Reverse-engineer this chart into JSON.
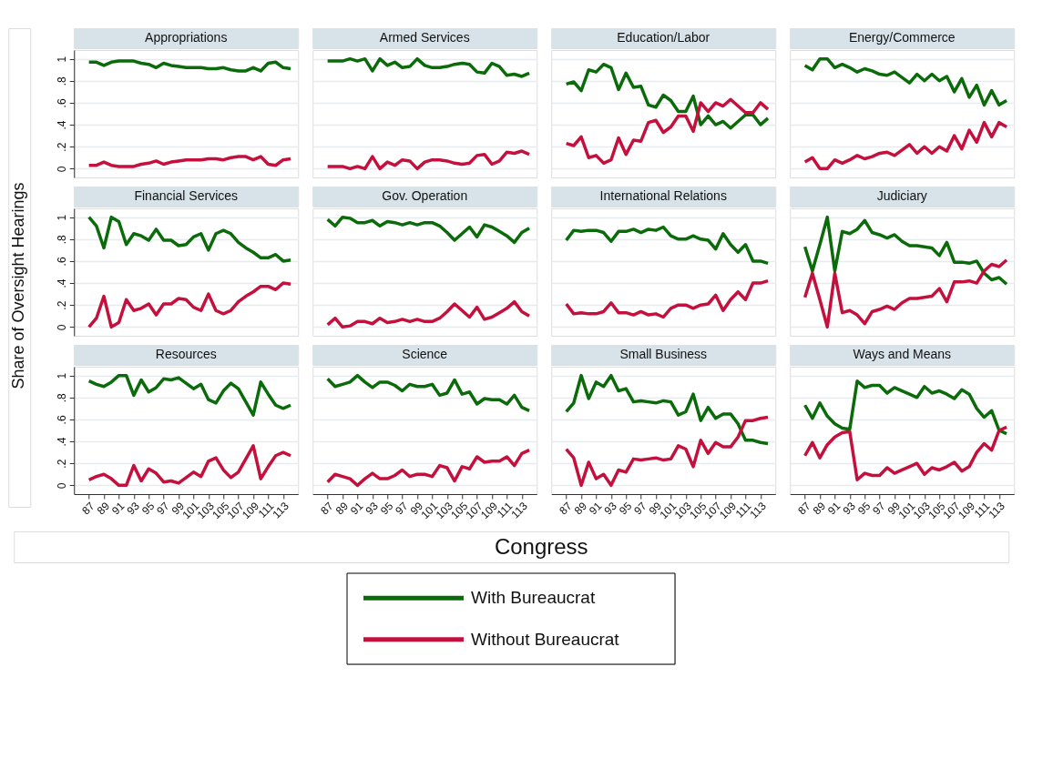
{
  "chart_data": [
    {
      "type": "line",
      "title": "Appropriations",
      "ylabel": "Share of Oversight Hearings",
      "legend": "bottom",
      "tick_labels": "y",
      "grid": "y",
      "xlim": [
        85,
        115
      ],
      "ylim": [
        -0.08,
        1.08
      ],
      "xticks": [
        87,
        89,
        91,
        93,
        95,
        97,
        99,
        101,
        103,
        105,
        107,
        109,
        111,
        113
      ],
      "yticks": [
        0,
        {
          "value": 0.2,
          "label": ".2"
        },
        {
          "value": 0.4,
          "label": ".4"
        },
        {
          "value": 0.6,
          "label": ".6"
        },
        {
          "value": 0.8,
          "label": ".8"
        },
        1
      ],
      "x": [
        87,
        88,
        89,
        90,
        91,
        92,
        93,
        94,
        95,
        96,
        97,
        98,
        99,
        100,
        101,
        102,
        103,
        104,
        105,
        106,
        107,
        108,
        109,
        110,
        111,
        112,
        113,
        114
      ],
      "series": [
        {
          "name": "With Bureaucrat",
          "color": "#0b6b0b",
          "values": [
            0.97,
            0.97,
            0.94,
            0.97,
            0.98,
            0.98,
            0.98,
            0.96,
            0.95,
            0.92,
            0.96,
            0.94,
            0.93,
            0.92,
            0.92,
            0.92,
            0.91,
            0.91,
            0.92,
            0.9,
            0.89,
            0.89,
            0.92,
            0.89,
            0.96,
            0.97,
            0.92,
            0.91
          ]
        },
        {
          "name": "Without Bureaucrat",
          "color": "#c4103d",
          "values": [
            0.03,
            0.03,
            0.06,
            0.03,
            0.02,
            0.02,
            0.02,
            0.04,
            0.05,
            0.07,
            0.04,
            0.06,
            0.07,
            0.08,
            0.08,
            0.08,
            0.09,
            0.09,
            0.08,
            0.1,
            0.11,
            0.11,
            0.08,
            0.11,
            0.04,
            0.03,
            0.08,
            0.09
          ]
        }
      ]
    },
    {
      "type": "line",
      "title": "Armed Services",
      "tick_labels": false,
      "grid": "y",
      "xlim": [
        85,
        115
      ],
      "ylim": [
        -0.08,
        1.08
      ],
      "xticks": [
        87,
        89,
        91,
        93,
        95,
        97,
        99,
        101,
        103,
        105,
        107,
        109,
        111,
        113
      ],
      "yticks": [
        0,
        0.2,
        0.4,
        0.6,
        0.8,
        1
      ],
      "x": [
        87,
        88,
        89,
        90,
        91,
        92,
        93,
        94,
        95,
        96,
        97,
        98,
        99,
        100,
        101,
        102,
        103,
        104,
        105,
        106,
        107,
        108,
        109,
        110,
        111,
        112,
        113,
        114
      ],
      "series": [
        {
          "color": "#0b6b0b",
          "values": [
            0.98,
            0.98,
            0.98,
            1.0,
            0.98,
            1.0,
            0.89,
            1.0,
            0.94,
            0.97,
            0.92,
            0.93,
            1.0,
            0.94,
            0.92,
            0.92,
            0.93,
            0.95,
            0.96,
            0.95,
            0.88,
            0.87,
            0.96,
            0.93,
            0.85,
            0.86,
            0.84,
            0.87
          ]
        },
        {
          "color": "#c4103d",
          "values": [
            0.02,
            0.02,
            0.02,
            0,
            0.02,
            0,
            0.11,
            0,
            0.06,
            0.03,
            0.08,
            0.07,
            0,
            0.06,
            0.08,
            0.08,
            0.07,
            0.05,
            0.04,
            0.05,
            0.12,
            0.13,
            0.04,
            0.07,
            0.15,
            0.14,
            0.16,
            0.13
          ]
        }
      ]
    },
    {
      "type": "line",
      "title": "Education/Labor",
      "tick_labels": false,
      "grid": "y",
      "xlim": [
        85,
        115
      ],
      "ylim": [
        -0.08,
        1.08
      ],
      "xticks": [
        87,
        89,
        91,
        93,
        95,
        97,
        99,
        101,
        103,
        105,
        107,
        109,
        111,
        113
      ],
      "yticks": [
        0,
        0.2,
        0.4,
        0.6,
        0.8,
        1
      ],
      "x": [
        87,
        88,
        89,
        90,
        91,
        92,
        93,
        94,
        95,
        96,
        97,
        98,
        99,
        100,
        101,
        102,
        103,
        104,
        105,
        106,
        107,
        108,
        109,
        110,
        111,
        112,
        113,
        114
      ],
      "series": [
        {
          "color": "#0b6b0b",
          "values": [
            0.77,
            0.79,
            0.71,
            0.9,
            0.88,
            0.95,
            0.92,
            0.72,
            0.87,
            0.74,
            0.75,
            0.58,
            0.56,
            0.67,
            0.62,
            0.52,
            0.52,
            0.66,
            0.4,
            0.48,
            0.4,
            0.43,
            0.37,
            0.43,
            0.49,
            0.49,
            0.4,
            0.46
          ]
        },
        {
          "color": "#c4103d",
          "values": [
            0.23,
            0.21,
            0.29,
            0.1,
            0.12,
            0.05,
            0.08,
            0.28,
            0.13,
            0.26,
            0.25,
            0.42,
            0.44,
            0.33,
            0.38,
            0.48,
            0.48,
            0.34,
            0.6,
            0.52,
            0.6,
            0.57,
            0.63,
            0.57,
            0.51,
            0.51,
            0.6,
            0.54
          ]
        }
      ]
    },
    {
      "type": "line",
      "title": "Energy/Commerce",
      "tick_labels": false,
      "grid": "y",
      "xlim": [
        85,
        115
      ],
      "ylim": [
        -0.08,
        1.08
      ],
      "xticks": [
        87,
        89,
        91,
        93,
        95,
        97,
        99,
        101,
        103,
        105,
        107,
        109,
        111,
        113
      ],
      "yticks": [
        0,
        0.2,
        0.4,
        0.6,
        0.8,
        1
      ],
      "x": [
        87,
        88,
        89,
        90,
        91,
        92,
        93,
        94,
        95,
        96,
        97,
        98,
        99,
        100,
        101,
        102,
        103,
        104,
        105,
        106,
        107,
        108,
        109,
        110,
        111,
        112,
        113,
        114
      ],
      "series": [
        {
          "color": "#0b6b0b",
          "values": [
            0.94,
            0.9,
            1.0,
            1.0,
            0.92,
            0.95,
            0.92,
            0.88,
            0.91,
            0.89,
            0.86,
            0.85,
            0.88,
            0.83,
            0.78,
            0.86,
            0.8,
            0.86,
            0.8,
            0.84,
            0.7,
            0.82,
            0.65,
            0.76,
            0.58,
            0.71,
            0.58,
            0.62
          ]
        },
        {
          "color": "#c4103d",
          "values": [
            0.06,
            0.1,
            0,
            0,
            0.08,
            0.05,
            0.08,
            0.12,
            0.09,
            0.11,
            0.14,
            0.15,
            0.12,
            0.17,
            0.22,
            0.14,
            0.2,
            0.14,
            0.2,
            0.16,
            0.3,
            0.18,
            0.35,
            0.24,
            0.42,
            0.29,
            0.42,
            0.38
          ]
        }
      ]
    },
    {
      "type": "line",
      "title": "Financial Services",
      "tick_labels": "y",
      "grid": "y",
      "xlim": [
        85,
        115
      ],
      "ylim": [
        -0.08,
        1.08
      ],
      "xticks": [
        87,
        89,
        91,
        93,
        95,
        97,
        99,
        101,
        103,
        105,
        107,
        109,
        111,
        113
      ],
      "yticks": [
        0,
        {
          "value": 0.2,
          "label": ".2"
        },
        {
          "value": 0.4,
          "label": ".4"
        },
        {
          "value": 0.6,
          "label": ".6"
        },
        {
          "value": 0.8,
          "label": ".8"
        },
        1
      ],
      "x": [
        87,
        88,
        89,
        90,
        91,
        92,
        93,
        94,
        95,
        96,
        97,
        98,
        99,
        100,
        101,
        102,
        103,
        104,
        105,
        106,
        107,
        108,
        109,
        110,
        111,
        112,
        113,
        114
      ],
      "series": [
        {
          "color": "#0b6b0b",
          "values": [
            1.0,
            0.92,
            0.72,
            1.0,
            0.96,
            0.75,
            0.85,
            0.83,
            0.79,
            0.89,
            0.79,
            0.79,
            0.74,
            0.75,
            0.82,
            0.85,
            0.7,
            0.85,
            0.88,
            0.85,
            0.77,
            0.72,
            0.68,
            0.63,
            0.63,
            0.66,
            0.6,
            0.61
          ]
        },
        {
          "color": "#c4103d",
          "values": [
            0,
            0.08,
            0.28,
            0,
            0.04,
            0.25,
            0.15,
            0.17,
            0.21,
            0.11,
            0.21,
            0.21,
            0.26,
            0.25,
            0.18,
            0.15,
            0.3,
            0.15,
            0.12,
            0.15,
            0.23,
            0.28,
            0.32,
            0.37,
            0.37,
            0.34,
            0.4,
            0.39
          ]
        }
      ]
    },
    {
      "type": "line",
      "title": "Gov. Operation",
      "tick_labels": false,
      "grid": "y",
      "xlim": [
        85,
        115
      ],
      "ylim": [
        -0.08,
        1.08
      ],
      "xticks": [
        87,
        89,
        91,
        93,
        95,
        97,
        99,
        101,
        103,
        105,
        107,
        109,
        111,
        113
      ],
      "yticks": [
        0,
        0.2,
        0.4,
        0.6,
        0.8,
        1
      ],
      "x": [
        87,
        88,
        89,
        90,
        91,
        92,
        93,
        94,
        95,
        96,
        97,
        98,
        99,
        100,
        101,
        102,
        103,
        104,
        105,
        106,
        107,
        108,
        109,
        110,
        111,
        112,
        113,
        114
      ],
      "series": [
        {
          "color": "#0b6b0b",
          "values": [
            0.98,
            0.92,
            1.0,
            0.99,
            0.95,
            0.95,
            0.97,
            0.92,
            0.96,
            0.95,
            0.93,
            0.95,
            0.93,
            0.95,
            0.95,
            0.92,
            0.86,
            0.79,
            0.85,
            0.91,
            0.82,
            0.93,
            0.91,
            0.87,
            0.83,
            0.77,
            0.86,
            0.9
          ]
        },
        {
          "color": "#c4103d",
          "values": [
            0.02,
            0.08,
            0,
            0.01,
            0.05,
            0.05,
            0.03,
            0.08,
            0.04,
            0.05,
            0.07,
            0.05,
            0.07,
            0.05,
            0.05,
            0.08,
            0.14,
            0.21,
            0.15,
            0.09,
            0.18,
            0.07,
            0.09,
            0.13,
            0.17,
            0.23,
            0.14,
            0.1
          ]
        }
      ]
    },
    {
      "type": "line",
      "title": "International Relations",
      "tick_labels": false,
      "grid": "y",
      "xlim": [
        85,
        115
      ],
      "ylim": [
        -0.08,
        1.08
      ],
      "xticks": [
        87,
        89,
        91,
        93,
        95,
        97,
        99,
        101,
        103,
        105,
        107,
        109,
        111,
        113
      ],
      "yticks": [
        0,
        0.2,
        0.4,
        0.6,
        0.8,
        1
      ],
      "x": [
        87,
        88,
        89,
        90,
        91,
        92,
        93,
        94,
        95,
        96,
        97,
        98,
        99,
        100,
        101,
        102,
        103,
        104,
        105,
        106,
        107,
        108,
        109,
        110,
        111,
        112,
        113,
        114
      ],
      "series": [
        {
          "color": "#0b6b0b",
          "values": [
            0.79,
            0.88,
            0.87,
            0.88,
            0.88,
            0.86,
            0.78,
            0.87,
            0.87,
            0.89,
            0.86,
            0.89,
            0.88,
            0.91,
            0.83,
            0.8,
            0.8,
            0.83,
            0.8,
            0.79,
            0.71,
            0.85,
            0.75,
            0.68,
            0.75,
            0.6,
            0.6,
            0.58
          ]
        },
        {
          "color": "#c4103d",
          "values": [
            0.21,
            0.12,
            0.13,
            0.12,
            0.12,
            0.14,
            0.22,
            0.13,
            0.13,
            0.11,
            0.14,
            0.11,
            0.12,
            0.09,
            0.17,
            0.2,
            0.2,
            0.17,
            0.2,
            0.21,
            0.29,
            0.15,
            0.25,
            0.32,
            0.25,
            0.4,
            0.4,
            0.42
          ]
        }
      ]
    },
    {
      "type": "line",
      "title": "Judiciary",
      "tick_labels": false,
      "grid": "y",
      "xlim": [
        85,
        115
      ],
      "ylim": [
        -0.08,
        1.08
      ],
      "xticks": [
        87,
        89,
        91,
        93,
        95,
        97,
        99,
        101,
        103,
        105,
        107,
        109,
        111,
        113
      ],
      "yticks": [
        0,
        0.2,
        0.4,
        0.6,
        0.8,
        1
      ],
      "x": [
        87,
        88,
        89,
        90,
        91,
        92,
        93,
        94,
        95,
        96,
        97,
        98,
        99,
        100,
        101,
        102,
        103,
        104,
        105,
        106,
        107,
        108,
        109,
        110,
        111,
        112,
        113,
        114
      ],
      "series": [
        {
          "color": "#0b6b0b",
          "values": [
            0.73,
            0.51,
            0.75,
            1.0,
            0.51,
            0.87,
            0.85,
            0.89,
            0.97,
            0.86,
            0.84,
            0.81,
            0.84,
            0.78,
            0.74,
            0.74,
            0.73,
            0.72,
            0.65,
            0.77,
            0.59,
            0.59,
            0.58,
            0.6,
            0.49,
            0.43,
            0.45,
            0.39
          ]
        },
        {
          "color": "#c4103d",
          "values": [
            0.27,
            0.49,
            0.25,
            0,
            0.49,
            0.13,
            0.15,
            0.11,
            0.03,
            0.14,
            0.16,
            0.19,
            0.16,
            0.22,
            0.26,
            0.26,
            0.27,
            0.28,
            0.35,
            0.23,
            0.41,
            0.41,
            0.42,
            0.4,
            0.51,
            0.57,
            0.55,
            0.61
          ]
        }
      ]
    },
    {
      "type": "line",
      "title": "Resources",
      "grid": "y",
      "xlim": [
        85,
        115
      ],
      "ylim": [
        -0.08,
        1.08
      ],
      "xticks": [
        87,
        89,
        91,
        93,
        95,
        97,
        99,
        101,
        103,
        105,
        107,
        109,
        111,
        113
      ],
      "yticks": [
        0,
        {
          "value": 0.2,
          "label": ".2"
        },
        {
          "value": 0.4,
          "label": ".4"
        },
        {
          "value": 0.6,
          "label": ".6"
        },
        {
          "value": 0.8,
          "label": ".8"
        },
        1
      ],
      "x": [
        87,
        88,
        89,
        90,
        91,
        92,
        93,
        94,
        95,
        96,
        97,
        98,
        99,
        100,
        101,
        102,
        103,
        104,
        105,
        106,
        107,
        108,
        109,
        110,
        111,
        112,
        113,
        114
      ],
      "series": [
        {
          "color": "#0b6b0b",
          "values": [
            0.95,
            0.92,
            0.9,
            0.94,
            1.0,
            1.0,
            0.82,
            0.96,
            0.85,
            0.89,
            0.97,
            0.96,
            0.98,
            0.93,
            0.88,
            0.92,
            0.78,
            0.75,
            0.86,
            0.93,
            0.88,
            0.76,
            0.64,
            0.94,
            0.83,
            0.73,
            0.7,
            0.73
          ]
        },
        {
          "color": "#c4103d",
          "values": [
            0.05,
            0.08,
            0.1,
            0.06,
            0,
            0,
            0.18,
            0.04,
            0.15,
            0.11,
            0.03,
            0.04,
            0.02,
            0.07,
            0.12,
            0.08,
            0.22,
            0.25,
            0.14,
            0.07,
            0.12,
            0.24,
            0.36,
            0.06,
            0.17,
            0.27,
            0.3,
            0.27
          ]
        }
      ]
    },
    {
      "type": "line",
      "title": "Science",
      "xlabel": "Congress",
      "tick_labels": "x",
      "grid": "y",
      "xlim": [
        85,
        115
      ],
      "ylim": [
        -0.08,
        1.08
      ],
      "xticks": [
        87,
        89,
        91,
        93,
        95,
        97,
        99,
        101,
        103,
        105,
        107,
        109,
        111,
        113
      ],
      "yticks": [
        0,
        0.2,
        0.4,
        0.6,
        0.8,
        1
      ],
      "x": [
        87,
        88,
        89,
        90,
        91,
        92,
        93,
        94,
        95,
        96,
        97,
        98,
        99,
        100,
        101,
        102,
        103,
        104,
        105,
        106,
        107,
        108,
        109,
        110,
        111,
        112,
        113,
        114
      ],
      "series": [
        {
          "color": "#0b6b0b",
          "values": [
            0.97,
            0.9,
            0.92,
            0.94,
            1.0,
            0.94,
            0.89,
            0.94,
            0.94,
            0.91,
            0.86,
            0.92,
            0.9,
            0.9,
            0.92,
            0.82,
            0.84,
            0.96,
            0.83,
            0.85,
            0.74,
            0.79,
            0.78,
            0.78,
            0.74,
            0.82,
            0.71,
            0.68
          ]
        },
        {
          "color": "#c4103d",
          "values": [
            0.03,
            0.1,
            0.08,
            0.06,
            0,
            0.06,
            0.11,
            0.06,
            0.06,
            0.09,
            0.14,
            0.08,
            0.1,
            0.1,
            0.08,
            0.18,
            0.16,
            0.04,
            0.17,
            0.15,
            0.26,
            0.21,
            0.22,
            0.22,
            0.26,
            0.18,
            0.29,
            0.32
          ]
        }
      ]
    },
    {
      "type": "line",
      "title": "Small Business",
      "tick_labels": "x",
      "grid": "y",
      "xlim": [
        85,
        115
      ],
      "ylim": [
        -0.08,
        1.08
      ],
      "xticks": [
        87,
        89,
        91,
        93,
        95,
        97,
        99,
        101,
        103,
        105,
        107,
        109,
        111,
        113
      ],
      "yticks": [
        0,
        0.2,
        0.4,
        0.6,
        0.8,
        1
      ],
      "x": [
        87,
        88,
        89,
        90,
        91,
        92,
        93,
        94,
        95,
        96,
        97,
        98,
        99,
        100,
        101,
        102,
        103,
        104,
        105,
        106,
        107,
        108,
        109,
        110,
        111,
        112,
        113,
        114
      ],
      "series": [
        {
          "color": "#0b6b0b",
          "values": [
            0.67,
            0.75,
            1.0,
            0.79,
            0.94,
            0.9,
            1.0,
            0.86,
            0.88,
            0.76,
            0.77,
            0.76,
            0.75,
            0.77,
            0.76,
            0.64,
            0.67,
            0.83,
            0.59,
            0.71,
            0.61,
            0.65,
            0.65,
            0.56,
            0.41,
            0.41,
            0.39,
            0.38
          ]
        },
        {
          "color": "#c4103d",
          "values": [
            0.33,
            0.25,
            0,
            0.21,
            0.06,
            0.1,
            0,
            0.14,
            0.12,
            0.24,
            0.23,
            0.24,
            0.25,
            0.23,
            0.24,
            0.36,
            0.33,
            0.17,
            0.41,
            0.29,
            0.39,
            0.35,
            0.35,
            0.44,
            0.59,
            0.59,
            0.61,
            0.62
          ]
        }
      ]
    },
    {
      "type": "line",
      "title": "Ways and Means",
      "tick_labels": "x",
      "grid": "y",
      "xlim": [
        85,
        115
      ],
      "ylim": [
        -0.08,
        1.08
      ],
      "xticks": [
        87,
        89,
        91,
        93,
        95,
        97,
        99,
        101,
        103,
        105,
        107,
        109,
        111,
        113
      ],
      "yticks": [
        0,
        0.2,
        0.4,
        0.6,
        0.8,
        1
      ],
      "x": [
        87,
        88,
        89,
        90,
        91,
        92,
        93,
        94,
        95,
        96,
        97,
        98,
        99,
        100,
        101,
        102,
        103,
        104,
        105,
        106,
        107,
        108,
        109,
        110,
        111,
        112,
        113,
        114
      ],
      "series": [
        {
          "color": "#0b6b0b",
          "values": [
            0.73,
            0.61,
            0.75,
            0.63,
            0.56,
            0.52,
            0.51,
            0.95,
            0.89,
            0.91,
            0.91,
            0.84,
            0.89,
            0.86,
            0.83,
            0.8,
            0.9,
            0.84,
            0.86,
            0.83,
            0.79,
            0.87,
            0.83,
            0.7,
            0.62,
            0.68,
            0.5,
            0.47
          ]
        },
        {
          "color": "#c4103d",
          "values": [
            0.27,
            0.39,
            0.25,
            0.37,
            0.44,
            0.48,
            0.49,
            0.05,
            0.11,
            0.09,
            0.09,
            0.16,
            0.11,
            0.14,
            0.17,
            0.2,
            0.1,
            0.16,
            0.14,
            0.17,
            0.21,
            0.13,
            0.17,
            0.3,
            0.38,
            0.32,
            0.5,
            0.53
          ]
        }
      ]
    }
  ]
}
